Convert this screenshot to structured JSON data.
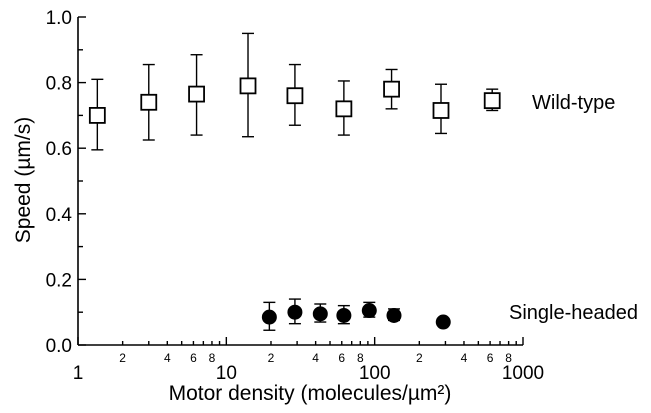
{
  "chart_data": {
    "type": "scatter",
    "xscale": "log",
    "xlim": [
      1,
      1000
    ],
    "ylim": [
      0.0,
      1.0
    ],
    "xlabel": "Motor density (molecules/µm²)",
    "ylabel": "Speed (µm/s)",
    "x_major_ticks": [
      1,
      10,
      100,
      1000
    ],
    "x_major_tick_labels": [
      "1",
      "10",
      "100",
      "1000"
    ],
    "x_minor_tick_labels": [
      {
        "x": 2,
        "label": "2"
      },
      {
        "x": 4,
        "label": "4"
      },
      {
        "x": 6,
        "label": "6"
      },
      {
        "x": 8,
        "label": "8"
      },
      {
        "x": 20,
        "label": "2"
      },
      {
        "x": 40,
        "label": "4"
      },
      {
        "x": 60,
        "label": "6"
      },
      {
        "x": 80,
        "label": "8"
      },
      {
        "x": 200,
        "label": "2"
      },
      {
        "x": 400,
        "label": "4"
      },
      {
        "x": 600,
        "label": "6"
      },
      {
        "x": 800,
        "label": "8"
      }
    ],
    "y_ticks": [
      0.0,
      0.2,
      0.4,
      0.6,
      0.8,
      1.0
    ],
    "y_tick_labels": [
      "0.0",
      "0.2",
      "0.4",
      "0.6",
      "0.8",
      "1.0"
    ],
    "series": [
      {
        "name": "Wild-type",
        "marker": "open-square",
        "points": [
          {
            "x": 1.35,
            "y": 0.7,
            "lo": 0.595,
            "hi": 0.81
          },
          {
            "x": 3.0,
            "y": 0.74,
            "lo": 0.625,
            "hi": 0.855
          },
          {
            "x": 6.3,
            "y": 0.765,
            "lo": 0.64,
            "hi": 0.885
          },
          {
            "x": 14.0,
            "y": 0.79,
            "lo": 0.635,
            "hi": 0.95
          },
          {
            "x": 29.0,
            "y": 0.76,
            "lo": 0.67,
            "hi": 0.855
          },
          {
            "x": 62.0,
            "y": 0.72,
            "lo": 0.64,
            "hi": 0.805
          },
          {
            "x": 130.0,
            "y": 0.78,
            "lo": 0.72,
            "hi": 0.84
          },
          {
            "x": 280.0,
            "y": 0.715,
            "lo": 0.645,
            "hi": 0.795
          },
          {
            "x": 620.0,
            "y": 0.745,
            "lo": 0.715,
            "hi": 0.78
          }
        ]
      },
      {
        "name": "Single-headed",
        "marker": "filled-circle",
        "points": [
          {
            "x": 19.5,
            "y": 0.085,
            "lo": 0.045,
            "hi": 0.13
          },
          {
            "x": 29.0,
            "y": 0.1,
            "lo": 0.065,
            "hi": 0.14
          },
          {
            "x": 43.0,
            "y": 0.095,
            "lo": 0.07,
            "hi": 0.125
          },
          {
            "x": 62.0,
            "y": 0.09,
            "lo": 0.065,
            "hi": 0.12
          },
          {
            "x": 92.0,
            "y": 0.105,
            "lo": 0.085,
            "hi": 0.13
          },
          {
            "x": 135.0,
            "y": 0.09,
            "lo": 0.075,
            "hi": 0.11
          },
          {
            "x": 290.0,
            "y": 0.07,
            "lo": 0.07,
            "hi": 0.07
          }
        ]
      }
    ]
  }
}
